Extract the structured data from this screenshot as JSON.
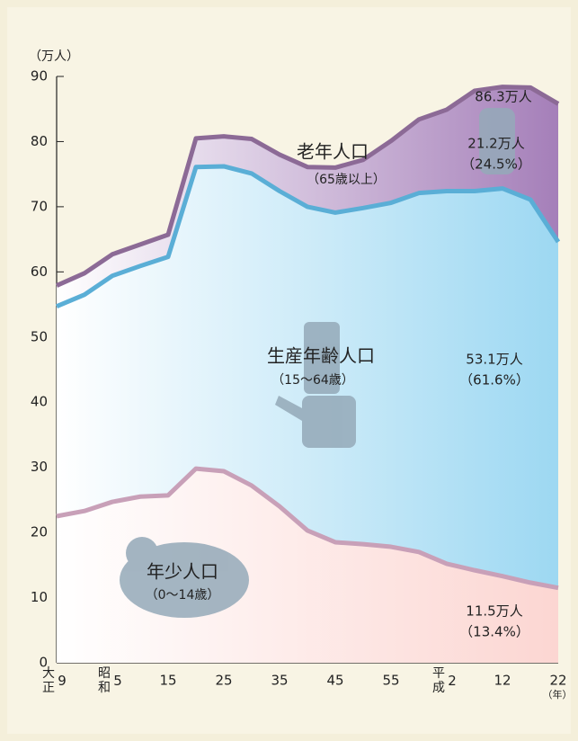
{
  "chart_data": {
    "type": "stacked-area",
    "y_unit": "（万人）",
    "x_unit": "（年）",
    "categories": [
      "大正9",
      null,
      "昭和5",
      null,
      "15",
      null,
      "25",
      null,
      "35",
      null,
      "45",
      null,
      "55",
      null,
      "平成2",
      null,
      "12",
      null,
      "22"
    ],
    "ylim": [
      0,
      90
    ],
    "yticks": [
      0,
      10,
      20,
      30,
      40,
      50,
      60,
      70,
      80,
      90
    ],
    "total_label": "86.3万人",
    "series": [
      {
        "name": "年少人口",
        "age_range": "（0～14歳）",
        "color": "#fcd6d2",
        "line_color": "#c8a0b8",
        "values": [
          22.5,
          23.3,
          24.7,
          25.5,
          25.7,
          29.8,
          29.4,
          27.2,
          24.0,
          20.3,
          18.5,
          18.2,
          17.8,
          17.0,
          15.2,
          14.2,
          13.3,
          12.3,
          11.5
        ],
        "end_label": "11.5万人",
        "end_share": "（13.4%）"
      },
      {
        "name": "生産年齢人口",
        "age_range": "（15～64歳）",
        "color": "#9dd8f2",
        "line_color": "#5aaed6",
        "values": [
          32.2,
          33.2,
          34.7,
          35.4,
          36.6,
          46.3,
          46.8,
          47.9,
          48.4,
          49.7,
          50.6,
          51.6,
          52.8,
          55.1,
          57.2,
          58.2,
          59.5,
          58.8,
          53.1
        ],
        "end_label": "53.1万人",
        "end_share": "（61.6%）"
      },
      {
        "name": "老年人口",
        "age_range": "（65歳以上）",
        "color": "#a57fb9",
        "line_color": "#8c6a96",
        "values": [
          3.2,
          3.3,
          3.3,
          3.3,
          3.4,
          4.4,
          4.6,
          5.3,
          5.6,
          6.1,
          6.9,
          7.4,
          9.5,
          11.3,
          12.5,
          15.4,
          15.6,
          17.2,
          21.2
        ],
        "end_label": "21.2万人",
        "end_share": "（24.5%）"
      }
    ]
  }
}
